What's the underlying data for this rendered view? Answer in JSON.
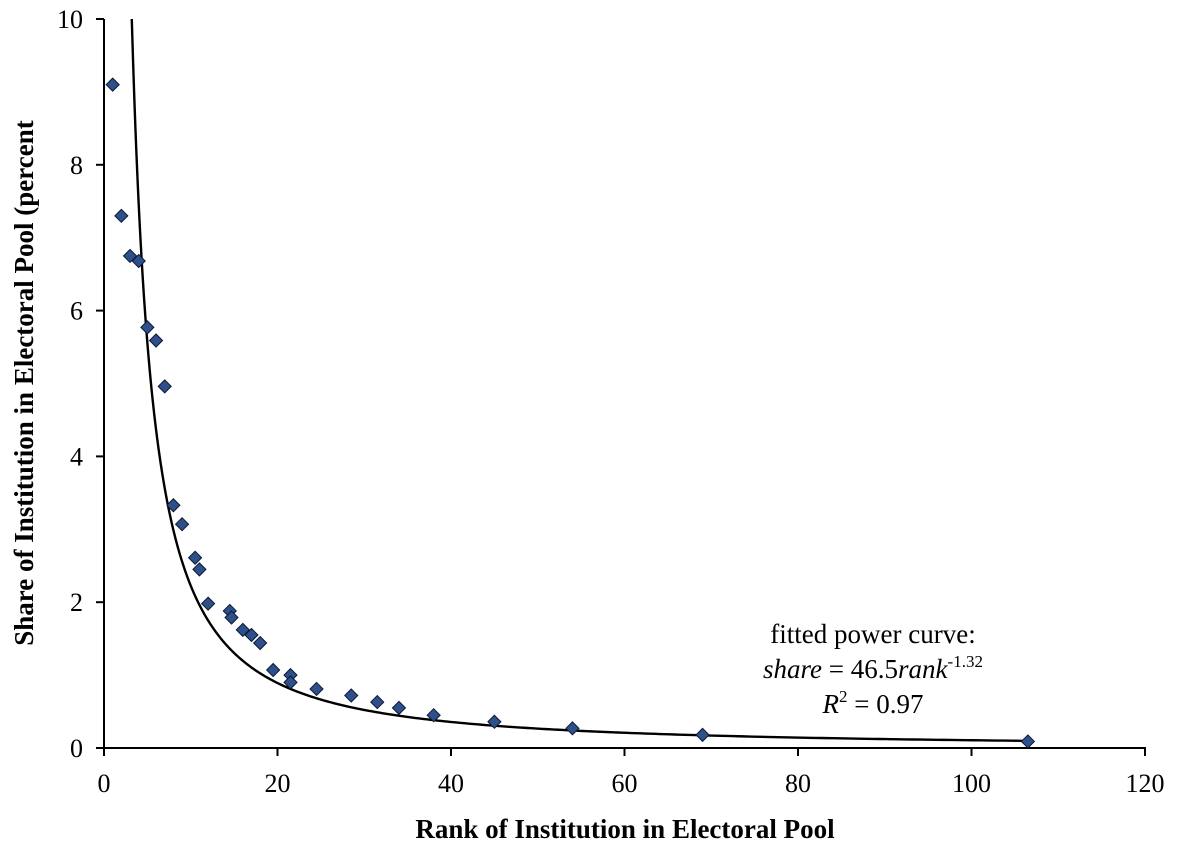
{
  "chart_data": {
    "type": "scatter",
    "xlabel": "Rank of Institution in Electoral Pool",
    "ylabel": "Share of Institution in Electoral Pool (percent",
    "xlim": [
      0,
      120
    ],
    "ylim": [
      0,
      10
    ],
    "xticks": [
      0,
      20,
      40,
      60,
      80,
      100,
      120
    ],
    "yticks": [
      0,
      2,
      4,
      6,
      8,
      10
    ],
    "xtick_labels": [
      "0",
      "20",
      "40",
      "60",
      "80",
      "100",
      "120"
    ],
    "ytick_labels": [
      "0",
      "2",
      "4",
      "6",
      "8",
      "10"
    ],
    "grid": false,
    "marker_color": "#2E4F8A",
    "curve_color": "#000000",
    "points": [
      {
        "x": 1,
        "y": 9.1
      },
      {
        "x": 2,
        "y": 7.3
      },
      {
        "x": 3,
        "y": 6.75
      },
      {
        "x": 4,
        "y": 6.68
      },
      {
        "x": 5,
        "y": 5.77
      },
      {
        "x": 6,
        "y": 5.59
      },
      {
        "x": 7,
        "y": 4.96
      },
      {
        "x": 8,
        "y": 3.33
      },
      {
        "x": 9,
        "y": 3.07
      },
      {
        "x": 10.5,
        "y": 2.61
      },
      {
        "x": 11,
        "y": 2.45
      },
      {
        "x": 12,
        "y": 1.98
      },
      {
        "x": 14.5,
        "y": 1.88
      },
      {
        "x": 14.7,
        "y": 1.79
      },
      {
        "x": 16,
        "y": 1.62
      },
      {
        "x": 17,
        "y": 1.55
      },
      {
        "x": 18,
        "y": 1.44
      },
      {
        "x": 19.5,
        "y": 1.07
      },
      {
        "x": 21.5,
        "y": 1.0
      },
      {
        "x": 21.5,
        "y": 0.9
      },
      {
        "x": 24.5,
        "y": 0.81
      },
      {
        "x": 28.5,
        "y": 0.72
      },
      {
        "x": 31.5,
        "y": 0.63
      },
      {
        "x": 34,
        "y": 0.55
      },
      {
        "x": 38,
        "y": 0.45
      },
      {
        "x": 45,
        "y": 0.36
      },
      {
        "x": 54,
        "y": 0.27
      },
      {
        "x": 69,
        "y": 0.18
      },
      {
        "x": 106.5,
        "y": 0.09
      }
    ],
    "fit": {
      "a": 46.5,
      "b": -1.32,
      "x_range": [
        3.2,
        106.5
      ]
    },
    "annotation": {
      "line1": "fitted power curve:",
      "line2_var": "share",
      "line2_eq": " = 46.5",
      "line2_rank": "rank",
      "line2_exp": "-1.32",
      "line3_var": "R",
      "line3_sup": "2",
      "line3_eq": " = 0.97"
    }
  }
}
